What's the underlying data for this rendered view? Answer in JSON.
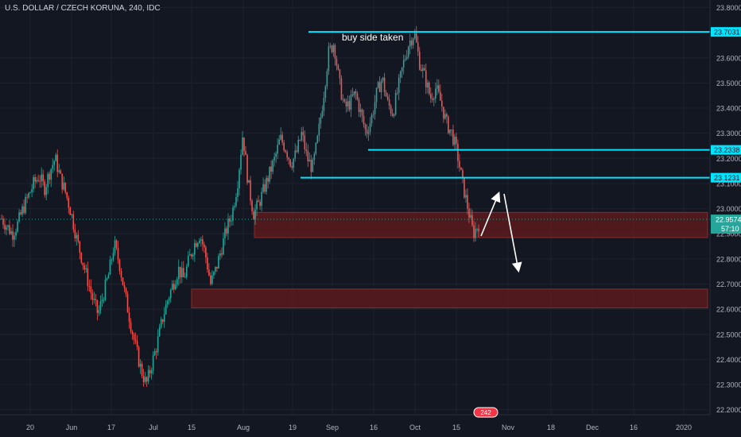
{
  "header": {
    "symbol_title": "U.S. DOLLAR / CZECH KORUNA, 240, IDC"
  },
  "annotation": {
    "text": "buy side taken"
  },
  "watermark": {
    "text": "242"
  },
  "colors": {
    "background": "#131722",
    "grid": "#1e222d",
    "up_candle": "#26a69a",
    "down_candle": "#ef5350",
    "level_line": "#00e5ff",
    "zone_fill": "#5a1a1d",
    "zone_border": "#8f2b2b",
    "price_badge": "#26a69a",
    "axis_text": "#b2b5be",
    "arrow": "#ffffff"
  },
  "chart_data": {
    "type": "candlestick",
    "title": "U.S. DOLLAR / CZECH KORUNA, 240, IDC",
    "interval": "240",
    "ylim": [
      22.18,
      23.83
    ],
    "y_ticks": [
      "23.8000",
      "23.6000",
      "23.5000",
      "23.4000",
      "23.3000",
      "23.2000",
      "23.1000",
      "23.0000",
      "22.9000",
      "22.8000",
      "22.7000",
      "22.6000",
      "22.5000",
      "22.4000",
      "22.3000",
      "22.2000"
    ],
    "x_ticks": [
      "20",
      "Jun",
      "17",
      "Jul",
      "15",
      "Aug",
      "19",
      "Sep",
      "16",
      "Oct",
      "15",
      "Nov",
      "18",
      "Dec",
      "16",
      "2020"
    ],
    "grid": true,
    "current_price": "22.9574",
    "countdown": "57:10",
    "horizontal_levels": [
      {
        "value": 23.7031,
        "label": "23.7031"
      },
      {
        "value": 23.2338,
        "label": "23.2338"
      },
      {
        "value": 23.1231,
        "label": "23.1231"
      }
    ],
    "zones": [
      {
        "from": 22.885,
        "to": 22.985
      },
      {
        "from": 22.605,
        "to": 22.68
      }
    ],
    "close_path": [
      22.96,
      22.93,
      22.9,
      22.94,
      23.0,
      23.05,
      23.1,
      23.13,
      23.08,
      23.15,
      23.2,
      23.12,
      23.06,
      22.98,
      22.88,
      22.8,
      22.72,
      22.64,
      22.58,
      22.66,
      22.74,
      22.86,
      22.78,
      22.66,
      22.55,
      22.45,
      22.36,
      22.3,
      22.38,
      22.46,
      22.56,
      22.64,
      22.7,
      22.76,
      22.72,
      22.8,
      22.86,
      22.9,
      22.82,
      22.7,
      22.76,
      22.84,
      22.92,
      22.98,
      23.1,
      23.3,
      23.1,
      22.98,
      23.02,
      23.08,
      23.14,
      23.2,
      23.28,
      23.24,
      23.18,
      23.22,
      23.3,
      23.2,
      23.16,
      23.28,
      23.44,
      23.62,
      23.66,
      23.5,
      23.4,
      23.42,
      23.46,
      23.38,
      23.3,
      23.36,
      23.46,
      23.52,
      23.42,
      23.38,
      23.48,
      23.58,
      23.66,
      23.7,
      23.58,
      23.52,
      23.44,
      23.48,
      23.42,
      23.34,
      23.3,
      23.22,
      23.1,
      23.0,
      22.9,
      22.94
    ]
  }
}
